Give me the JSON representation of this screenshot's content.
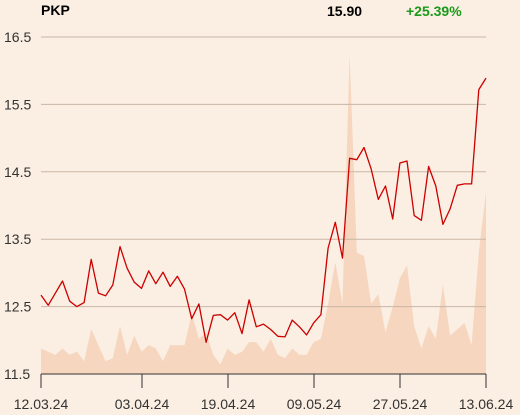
{
  "header": {
    "ticker": "PKP",
    "last_price": "15.90",
    "change": "+25.39%",
    "change_color": "#1a9a1a"
  },
  "chart_data": {
    "type": "line",
    "title": "",
    "xlabel": "",
    "ylabel": "",
    "ylim": [
      11.5,
      16.5
    ],
    "y_ticks": [
      "16.5",
      "15.5",
      "14.5",
      "13.5",
      "12.5",
      "11.5"
    ],
    "x_tick_labels": [
      "12.03.24",
      "03.04.24",
      "19.04.24",
      "09.05.24",
      "27.05.24",
      "13.06.24"
    ],
    "grid": true,
    "line_color": "#cc0000",
    "volume_color": "#f6d6bf",
    "series": [
      {
        "values": [
          12.67,
          12.52,
          12.7,
          12.88,
          12.58,
          12.5,
          12.56,
          13.2,
          12.7,
          12.66,
          12.82,
          13.39,
          13.07,
          12.86,
          12.77,
          13.03,
          12.84,
          13.01,
          12.8,
          12.95,
          12.76,
          12.32,
          12.54,
          11.97,
          12.37,
          12.38,
          12.3,
          12.41,
          12.1,
          12.6,
          12.2,
          12.24,
          12.16,
          12.06,
          12.05,
          12.3,
          12.2,
          12.08,
          12.26,
          12.38,
          13.37,
          13.75,
          13.22,
          14.7,
          14.68,
          14.86,
          14.54,
          14.09,
          14.29,
          13.8,
          14.63,
          14.66,
          13.85,
          13.78,
          14.58,
          14.29,
          13.72,
          13.95,
          14.3,
          14.32,
          14.32,
          15.72,
          15.89
        ]
      }
    ],
    "volume_relative": [
      0.08,
      0.07,
      0.06,
      0.08,
      0.06,
      0.07,
      0.04,
      0.14,
      0.09,
      0.04,
      0.05,
      0.15,
      0.06,
      0.12,
      0.07,
      0.09,
      0.08,
      0.04,
      0.09,
      0.09,
      0.09,
      0.19,
      0.11,
      0.13,
      0.06,
      0.03,
      0.08,
      0.06,
      0.07,
      0.1,
      0.1,
      0.07,
      0.11,
      0.06,
      0.05,
      0.08,
      0.06,
      0.06,
      0.1,
      0.11,
      0.22,
      0.35,
      0.22,
      1.0,
      0.38,
      0.37,
      0.22,
      0.25,
      0.13,
      0.21,
      0.3,
      0.34,
      0.15,
      0.08,
      0.15,
      0.11,
      0.28,
      0.12,
      0.14,
      0.16,
      0.09,
      0.38,
      0.57
    ]
  }
}
